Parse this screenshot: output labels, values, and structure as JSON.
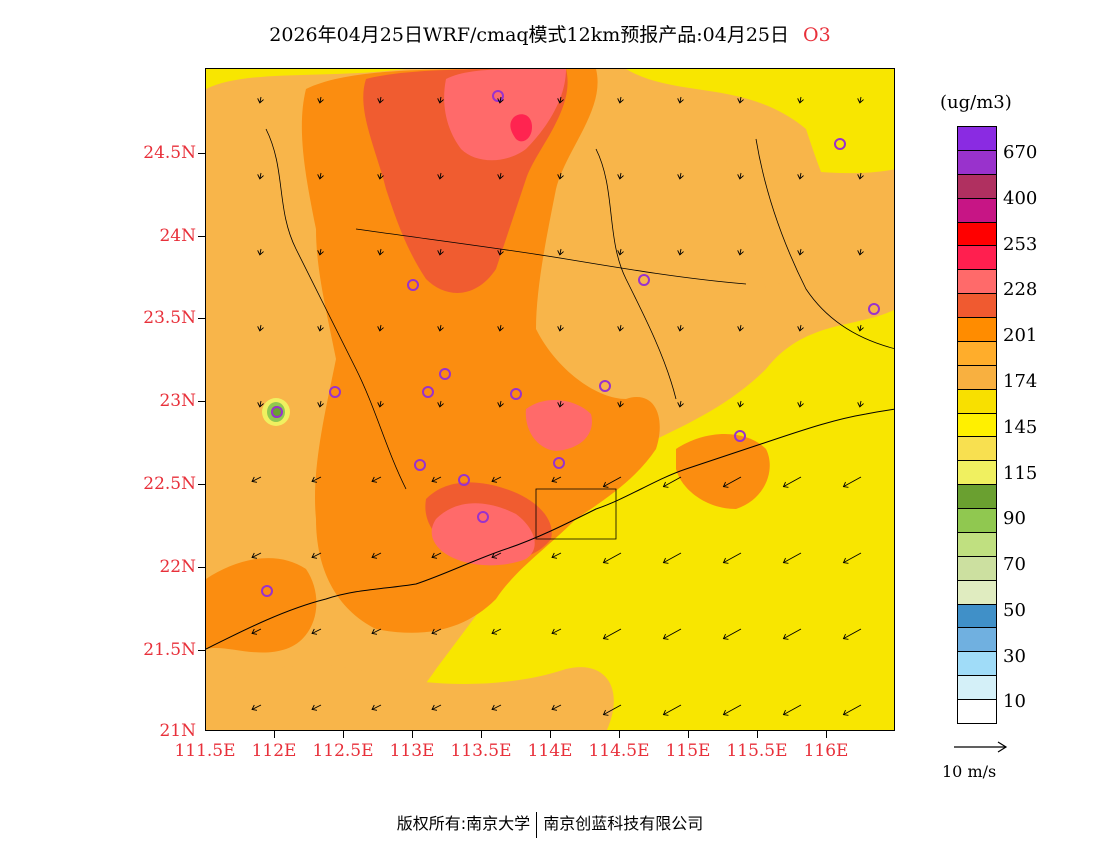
{
  "title": {
    "text": "2026年04月25日WRF/cmaq模式12km预报产品:04月25日",
    "species": "O3"
  },
  "map": {
    "lat_labels": [
      "24.5N",
      "24N",
      "23.5N",
      "23N",
      "22.5N",
      "22N",
      "21.5N",
      "21N"
    ],
    "lon_labels": [
      "111.5E",
      "112E",
      "112.5E",
      "113E",
      "113.5E",
      "114E",
      "114.5E",
      "115E",
      "115.5E",
      "116E"
    ],
    "lat_range": [
      21.0,
      25.0
    ],
    "lon_range": [
      111.5,
      116.5
    ]
  },
  "legend": {
    "unit": "(ug/m3)",
    "labels": [
      "670",
      "400",
      "253",
      "228",
      "201",
      "174",
      "145",
      "115",
      "90",
      "70",
      "50",
      "30",
      "10"
    ],
    "colors": [
      "#8a2be2",
      "#9932cc",
      "#b03060",
      "#c71585",
      "#ff0000",
      "#ff1f4f",
      "#ff6a6a",
      "#f05a30",
      "#ff8c00",
      "#ffad2b",
      "#f8b040",
      "#f8e000",
      "#fff000",
      "#f8e050",
      "#f0f060",
      "#6aa030",
      "#90c850",
      "#c0e080",
      "#cce0a0",
      "#e0ecc0",
      "#4090c8",
      "#70b0e0",
      "#a0dcf8",
      "#d4f0f8",
      "#ffffff"
    ]
  },
  "wind": {
    "reference_label": "10  m/s"
  },
  "footer": {
    "left": "版权所有:南京大学",
    "right": "南京创蓝科技有限公司"
  }
}
